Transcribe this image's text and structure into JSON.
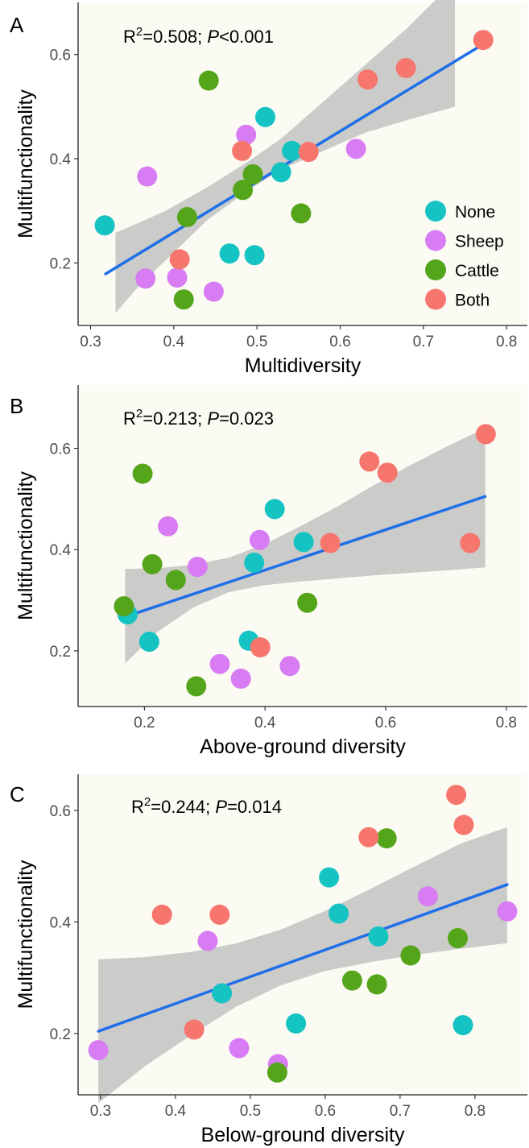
{
  "colors": {
    "panel_bg": "#fbfbf3",
    "ci_band": "#c2c2c2",
    "fit_line": "#1f6fe8",
    "None": "#16c3c3",
    "Sheep": "#d77cf2",
    "Cattle": "#55a51b",
    "Both": "#f6766d"
  },
  "chart_data": [
    {
      "type": "scatter",
      "panel_label": "A",
      "xlabel": "Multidiversity",
      "ylabel": "Multifunctionality",
      "xlim": [
        0.285,
        0.825
      ],
      "ylim": [
        0.08,
        0.7
      ],
      "xticks": [
        0.3,
        0.4,
        0.5,
        0.6,
        0.7,
        0.8
      ],
      "xtick_labels": [
        "0.3",
        "0.4",
        "0.5",
        "0.6",
        "0.7",
        "0.8"
      ],
      "yticks": [
        0.2,
        0.4,
        0.6
      ],
      "ytick_labels": [
        "0.2",
        "0.4",
        "0.6"
      ],
      "annotation": {
        "r2_prefix": "R",
        "r2_sup": "2",
        "r2_value": "=0.508; ",
        "p_label": "P",
        "p_value": "<0.001"
      },
      "legend": {
        "position": "bottom-right",
        "entries": [
          "None",
          "Sheep",
          "Cattle",
          "Both"
        ]
      },
      "fit": {
        "x": [
          0.318,
          0.772
        ],
        "y": [
          0.179,
          0.62
        ]
      },
      "ci": {
        "x": [
          0.33,
          0.355,
          0.39,
          0.44,
          0.49,
          0.53,
          0.58,
          0.63,
          0.68,
          0.738
        ],
        "lower": [
          0.104,
          0.15,
          0.205,
          0.282,
          0.34,
          0.38,
          0.415,
          0.45,
          0.474,
          0.5
        ],
        "upper": [
          0.258,
          0.275,
          0.3,
          0.345,
          0.395,
          0.44,
          0.51,
          0.58,
          0.65,
          0.742
        ]
      },
      "series": [
        {
          "name": "None",
          "x": [
            0.317,
            0.467,
            0.497,
            0.51,
            0.542,
            0.529
          ],
          "y": [
            0.272,
            0.218,
            0.215,
            0.48,
            0.415,
            0.374
          ]
        },
        {
          "name": "Sheep",
          "x": [
            0.368,
            0.366,
            0.404,
            0.448,
            0.487,
            0.619
          ],
          "y": [
            0.366,
            0.17,
            0.172,
            0.145,
            0.446,
            0.419
          ]
        },
        {
          "name": "Cattle",
          "x": [
            0.442,
            0.416,
            0.412,
            0.483,
            0.495,
            0.553
          ],
          "y": [
            0.55,
            0.288,
            0.13,
            0.34,
            0.37,
            0.295
          ]
        },
        {
          "name": "Both",
          "x": [
            0.407,
            0.482,
            0.562,
            0.633,
            0.679,
            0.772
          ],
          "y": [
            0.207,
            0.415,
            0.413,
            0.552,
            0.574,
            0.628
          ]
        }
      ]
    },
    {
      "type": "scatter",
      "panel_label": "B",
      "xlabel": "Above-ground diversity",
      "ylabel": "Multifunctionality",
      "xlim": [
        0.09,
        0.835
      ],
      "ylim": [
        0.09,
        0.725
      ],
      "xticks": [
        0.2,
        0.4,
        0.6,
        0.8
      ],
      "xtick_labels": [
        "0.2",
        "0.4",
        "0.6",
        "0.8"
      ],
      "yticks": [
        0.2,
        0.4,
        0.6
      ],
      "ytick_labels": [
        "0.2",
        "0.4",
        "0.6"
      ],
      "annotation": {
        "r2_prefix": "R",
        "r2_sup": "2",
        "r2_value": "=0.213; ",
        "p_label": "P",
        "p_value": "=0.023"
      },
      "fit": {
        "x": [
          0.17,
          0.765
        ],
        "y": [
          0.268,
          0.505
        ]
      },
      "ci": {
        "x": [
          0.168,
          0.22,
          0.28,
          0.34,
          0.4,
          0.46,
          0.52,
          0.58,
          0.64,
          0.7,
          0.765
        ],
        "lower": [
          0.175,
          0.236,
          0.285,
          0.316,
          0.33,
          0.337,
          0.343,
          0.349,
          0.354,
          0.359,
          0.365
        ],
        "upper": [
          0.362,
          0.363,
          0.37,
          0.384,
          0.411,
          0.447,
          0.485,
          0.527,
          0.566,
          0.603,
          0.64
        ]
      },
      "series": [
        {
          "name": "None",
          "x": [
            0.172,
            0.208,
            0.373,
            0.382,
            0.416,
            0.464
          ],
          "y": [
            0.272,
            0.218,
            0.22,
            0.374,
            0.48,
            0.415
          ]
        },
        {
          "name": "Sheep",
          "x": [
            0.239,
            0.288,
            0.325,
            0.36,
            0.391,
            0.441
          ],
          "y": [
            0.446,
            0.366,
            0.174,
            0.145,
            0.419,
            0.17
          ]
        },
        {
          "name": "Cattle",
          "x": [
            0.166,
            0.197,
            0.213,
            0.252,
            0.286,
            0.47
          ],
          "y": [
            0.288,
            0.55,
            0.371,
            0.34,
            0.13,
            0.295
          ]
        },
        {
          "name": "Both",
          "x": [
            0.392,
            0.508,
            0.573,
            0.603,
            0.74,
            0.766
          ],
          "y": [
            0.207,
            0.413,
            0.574,
            0.552,
            0.413,
            0.628
          ]
        }
      ]
    },
    {
      "type": "scatter",
      "panel_label": "C",
      "xlabel": "Below-ground diversity",
      "ylabel": "Multifunctionality",
      "xlim": [
        0.27,
        0.87
      ],
      "ylim": [
        0.09,
        0.665
      ],
      "xticks": [
        0.3,
        0.4,
        0.5,
        0.6,
        0.7,
        0.8
      ],
      "xtick_labels": [
        "0.3",
        "0.4",
        "0.5",
        "0.6",
        "0.7",
        "0.8"
      ],
      "yticks": [
        0.2,
        0.4,
        0.6
      ],
      "ytick_labels": [
        "0.2",
        "0.4",
        "0.6"
      ],
      "annotation": {
        "r2_prefix": "R",
        "r2_sup": "2",
        "r2_value": "=0.244; ",
        "p_label": "P",
        "p_value": "=0.014"
      },
      "fit": {
        "x": [
          0.297,
          0.843
        ],
        "y": [
          0.204,
          0.467
        ]
      },
      "ci": {
        "x": [
          0.297,
          0.36,
          0.42,
          0.48,
          0.54,
          0.6,
          0.66,
          0.72,
          0.78,
          0.843
        ],
        "lower": [
          0.075,
          0.142,
          0.196,
          0.247,
          0.286,
          0.312,
          0.328,
          0.341,
          0.352,
          0.362
        ],
        "upper": [
          0.333,
          0.337,
          0.346,
          0.361,
          0.386,
          0.42,
          0.459,
          0.5,
          0.54,
          0.57
        ]
      },
      "series": [
        {
          "name": "None",
          "x": [
            0.462,
            0.561,
            0.605,
            0.618,
            0.671,
            0.784
          ],
          "y": [
            0.272,
            0.218,
            0.48,
            0.415,
            0.374,
            0.215
          ]
        },
        {
          "name": "Sheep",
          "x": [
            0.297,
            0.443,
            0.485,
            0.537,
            0.737,
            0.843
          ],
          "y": [
            0.17,
            0.366,
            0.174,
            0.145,
            0.446,
            0.419
          ]
        },
        {
          "name": "Cattle",
          "x": [
            0.536,
            0.636,
            0.669,
            0.682,
            0.714,
            0.777
          ],
          "y": [
            0.13,
            0.295,
            0.288,
            0.55,
            0.34,
            0.371
          ]
        },
        {
          "name": "Both",
          "x": [
            0.382,
            0.425,
            0.459,
            0.658,
            0.775,
            0.785
          ],
          "y": [
            0.413,
            0.207,
            0.413,
            0.552,
            0.628,
            0.574
          ]
        }
      ]
    }
  ]
}
